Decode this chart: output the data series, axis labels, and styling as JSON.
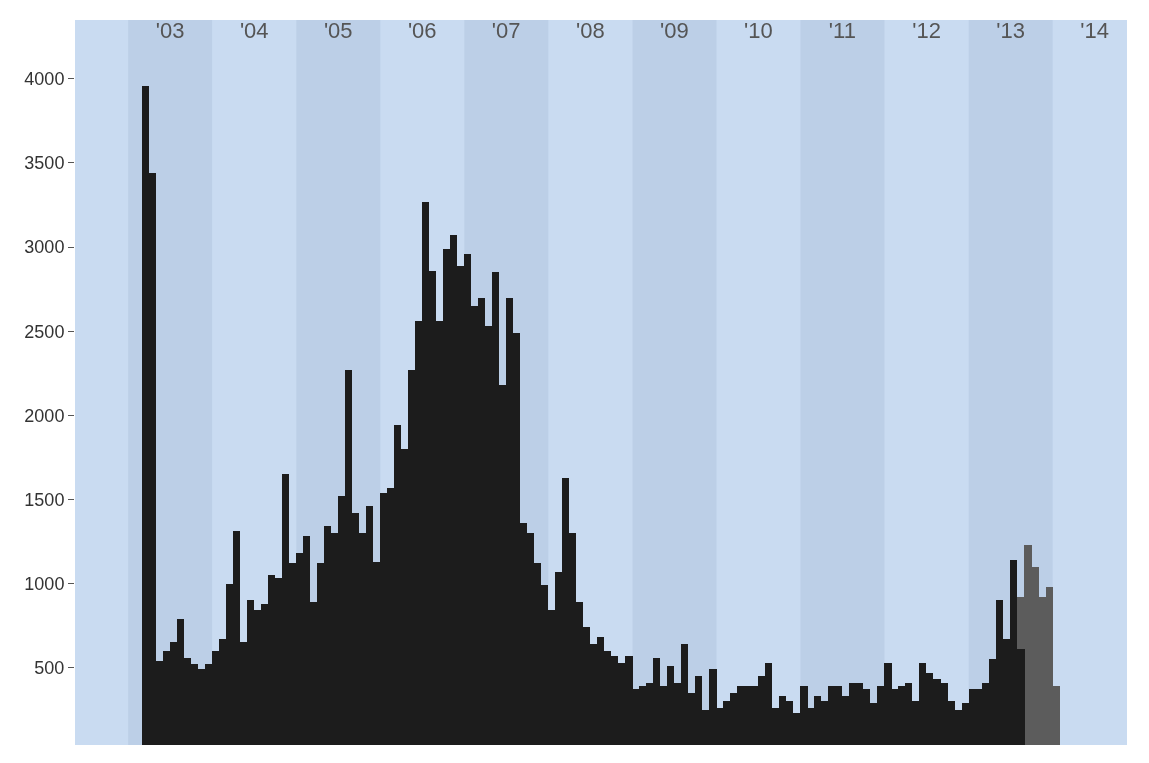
{
  "chart_data": {
    "type": "bar",
    "series": [
      {
        "color": "#5c5c5c",
        "x": [
          "2013-08",
          "2013-09",
          "2013-10",
          "2013-11",
          "2013-12",
          "2014-01"
        ],
        "values": [
          920,
          1230,
          1100,
          920,
          980,
          390
        ]
      },
      {
        "color": "#1c1c1c",
        "x": [
          "2003-03",
          "2003-04",
          "2003-05",
          "2003-06",
          "2003-07",
          "2003-08",
          "2003-09",
          "2003-10",
          "2003-11",
          "2003-12",
          "2004-01",
          "2004-02",
          "2004-03",
          "2004-04",
          "2004-05",
          "2004-06",
          "2004-07",
          "2004-08",
          "2004-09",
          "2004-10",
          "2004-11",
          "2004-12",
          "2005-01",
          "2005-02",
          "2005-03",
          "2005-04",
          "2005-05",
          "2005-06",
          "2005-07",
          "2005-08",
          "2005-09",
          "2005-10",
          "2005-11",
          "2005-12",
          "2006-01",
          "2006-02",
          "2006-03",
          "2006-04",
          "2006-05",
          "2006-06",
          "2006-07",
          "2006-08",
          "2006-09",
          "2006-10",
          "2006-11",
          "2006-12",
          "2007-01",
          "2007-02",
          "2007-03",
          "2007-04",
          "2007-05",
          "2007-06",
          "2007-07",
          "2007-08",
          "2007-09",
          "2007-10",
          "2007-11",
          "2007-12",
          "2008-01",
          "2008-02",
          "2008-03",
          "2008-04",
          "2008-05",
          "2008-06",
          "2008-07",
          "2008-08",
          "2008-09",
          "2008-10",
          "2008-11",
          "2008-12",
          "2009-01",
          "2009-02",
          "2009-03",
          "2009-04",
          "2009-05",
          "2009-06",
          "2009-07",
          "2009-08",
          "2009-09",
          "2009-10",
          "2009-11",
          "2009-12",
          "2010-01",
          "2010-02",
          "2010-03",
          "2010-04",
          "2010-05",
          "2010-06",
          "2010-07",
          "2010-08",
          "2010-09",
          "2010-10",
          "2010-11",
          "2010-12",
          "2011-01",
          "2011-02",
          "2011-03",
          "2011-04",
          "2011-05",
          "2011-06",
          "2011-07",
          "2011-08",
          "2011-09",
          "2011-10",
          "2011-11",
          "2011-12",
          "2012-01",
          "2012-02",
          "2012-03",
          "2012-04",
          "2012-05",
          "2012-06",
          "2012-07",
          "2012-08",
          "2012-09",
          "2012-10",
          "2012-11",
          "2012-12",
          "2013-01",
          "2013-02",
          "2013-03",
          "2013-04",
          "2013-05",
          "2013-06",
          "2013-07",
          "2013-08"
        ],
        "values": [
          3960,
          3440,
          540,
          600,
          650,
          790,
          560,
          520,
          490,
          520,
          600,
          670,
          1000,
          1310,
          650,
          900,
          840,
          880,
          1050,
          1030,
          1650,
          1120,
          1180,
          1280,
          890,
          1120,
          1340,
          1300,
          1520,
          2270,
          1420,
          1300,
          1460,
          1130,
          1540,
          1570,
          1940,
          1800,
          2270,
          2560,
          3270,
          2860,
          2560,
          2990,
          3070,
          2890,
          2960,
          2650,
          2700,
          2530,
          2850,
          2180,
          2700,
          2490,
          1360,
          1300,
          1120,
          990,
          840,
          1070,
          1630,
          1300,
          890,
          740,
          640,
          680,
          600,
          570,
          530,
          570,
          370,
          390,
          410,
          560,
          390,
          510,
          410,
          640,
          350,
          450,
          250,
          490,
          260,
          300,
          350,
          390,
          390,
          390,
          450,
          530,
          260,
          330,
          300,
          230,
          390,
          260,
          330,
          300,
          390,
          390,
          330,
          410,
          410,
          370,
          290,
          390,
          530,
          370,
          390,
          410,
          300,
          530,
          470,
          430,
          410,
          300,
          250,
          290,
          370,
          370,
          410,
          550,
          900,
          670,
          1140,
          610
        ]
      }
    ],
    "xlim": [
      "2002-05-15",
      "2014-11-20"
    ],
    "xticks": [
      {
        "value": "2003-07-02",
        "label": "'03"
      },
      {
        "value": "2004-07-02",
        "label": "'04"
      },
      {
        "value": "2005-07-02",
        "label": "'05"
      },
      {
        "value": "2006-07-02",
        "label": "'06"
      },
      {
        "value": "2007-07-02",
        "label": "'07"
      },
      {
        "value": "2008-07-02",
        "label": "'08"
      },
      {
        "value": "2009-07-02",
        "label": "'09"
      },
      {
        "value": "2010-07-02",
        "label": "'10"
      },
      {
        "value": "2011-07-02",
        "label": "'11"
      },
      {
        "value": "2012-07-02",
        "label": "'12"
      },
      {
        "value": "2013-07-02",
        "label": "'13"
      },
      {
        "value": "2014-07-02",
        "label": "'14"
      }
    ],
    "ylim": [
      40,
      4350
    ],
    "yticks": [
      500,
      1000,
      1500,
      2000,
      2500,
      3000,
      3500,
      4000
    ],
    "bands": [
      {
        "axis": "x",
        "from": "2003-01-01",
        "to": "2004-01-01",
        "color": "#bccfe7"
      },
      {
        "axis": "x",
        "from": "2005-01-01",
        "to": "2006-01-01",
        "color": "#bccfe7"
      },
      {
        "axis": "x",
        "from": "2007-01-01",
        "to": "2008-01-01",
        "color": "#bccfe7"
      },
      {
        "axis": "x",
        "from": "2009-01-01",
        "to": "2010-01-01",
        "color": "#bccfe7"
      },
      {
        "axis": "x",
        "from": "2011-01-01",
        "to": "2012-01-01",
        "color": "#bccfe7"
      },
      {
        "axis": "x",
        "from": "2013-01-01",
        "to": "2014-01-01",
        "color": "#bccfe7"
      }
    ],
    "grid": false
  }
}
